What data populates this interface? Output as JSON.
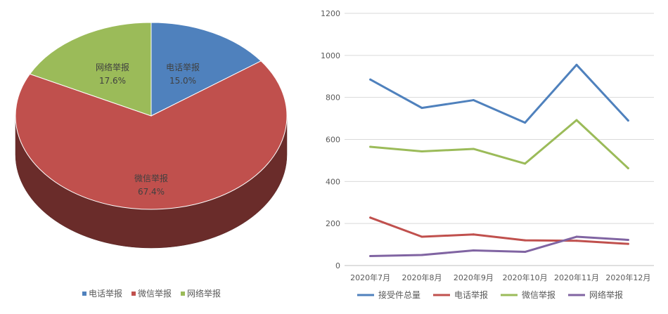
{
  "chart_data": [
    {
      "type": "pie",
      "title": "",
      "categories": [
        "电话举报",
        "微信举报",
        "网络举报"
      ],
      "values": [
        15.0,
        67.4,
        17.6
      ],
      "labels": [
        "15.0%",
        "67.4%",
        "17.6%"
      ],
      "colors": [
        "#4f81bd",
        "#c0504d",
        "#9bbb59"
      ],
      "style": "3d",
      "legend": "bottom"
    },
    {
      "type": "line",
      "title": "",
      "xlabel": "",
      "ylabel": "",
      "categories": [
        "2020年7月",
        "2020年8月",
        "2020年9月",
        "2020年10月",
        "2020年11月",
        "2020年12月"
      ],
      "ylim": [
        0,
        1200
      ],
      "yticks": [
        "0",
        "200",
        "400",
        "600",
        "800",
        "1000",
        "1200"
      ],
      "grid": true,
      "legend": "bottom",
      "series": [
        {
          "name": "接受件总量",
          "color": "#4f81bd",
          "values": [
            885,
            750,
            787,
            680,
            955,
            690
          ]
        },
        {
          "name": "电话举报",
          "color": "#c0504d",
          "values": [
            228,
            137,
            148,
            120,
            118,
            103
          ]
        },
        {
          "name": "微信举报",
          "color": "#9bbb59",
          "values": [
            565,
            543,
            555,
            485,
            692,
            463
          ]
        },
        {
          "name": "网络举报",
          "color": "#8064a2",
          "values": [
            45,
            50,
            72,
            65,
            137,
            122
          ]
        }
      ]
    }
  ]
}
